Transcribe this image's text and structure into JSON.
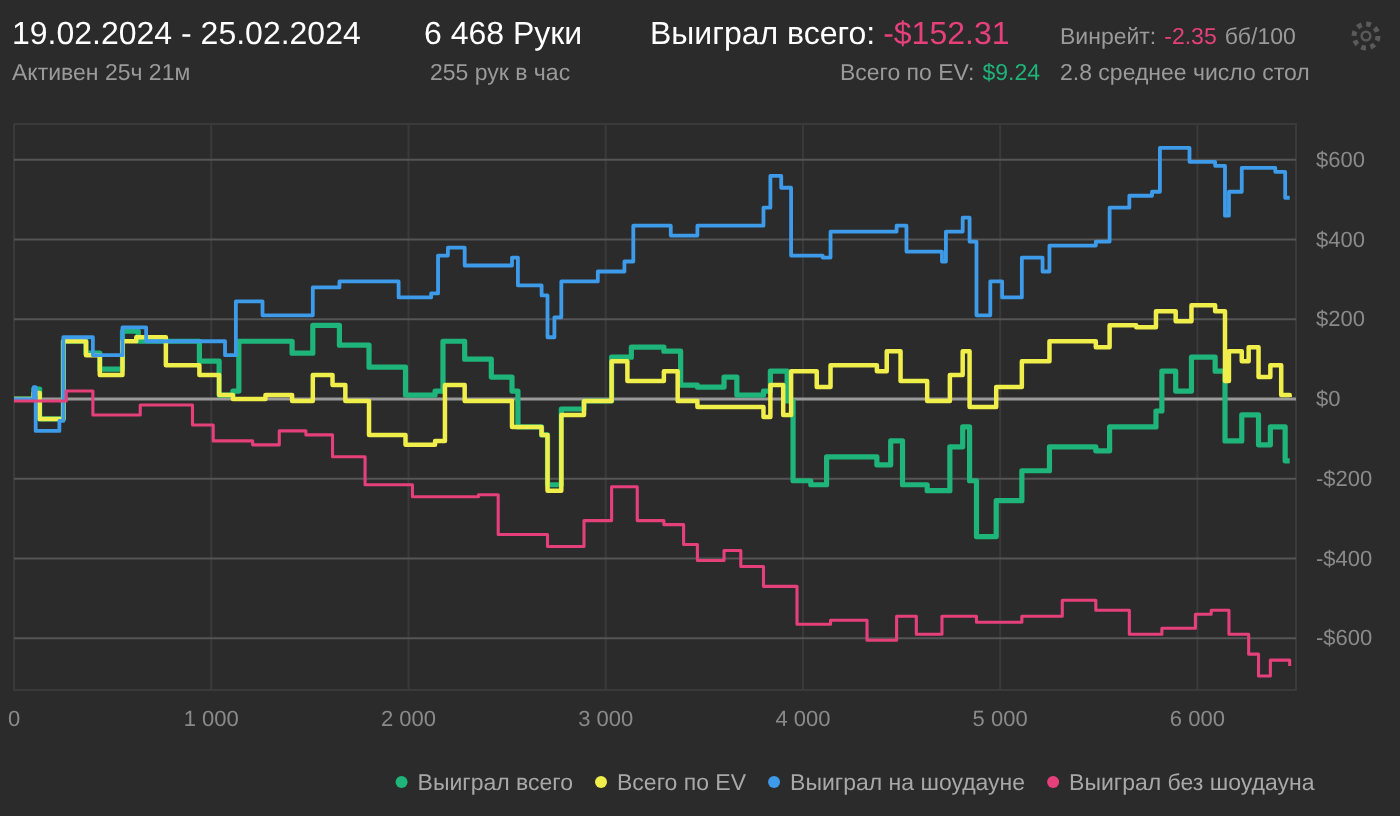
{
  "chart_data": {
    "type": "step",
    "title": "19.02.2024 - 25.02.2024",
    "subtitle": "Активен 25ч 21м",
    "annotations": [
      "6 468 Руки",
      "255 рук в час",
      "Выиграл всего:",
      "-$152.31",
      "Всего по EV:",
      "$9.24",
      "Винрейт:",
      "-2.35",
      "бб/100",
      "2.8 среднее число стол"
    ],
    "xlim": [
      0,
      6500
    ],
    "ylim": [
      -730,
      690
    ],
    "xticks": [
      0,
      {
        "value": 1000,
        "label": "1 000"
      },
      {
        "value": 2000,
        "label": "2 000"
      },
      {
        "value": 3000,
        "label": "3 000"
      },
      {
        "value": 4000,
        "label": "4 000"
      },
      {
        "value": 5000,
        "label": "5 000"
      },
      {
        "value": 6000,
        "label": "6 000"
      }
    ],
    "yticks": [
      {
        "value": -600,
        "label": "-$600"
      },
      {
        "value": -400,
        "label": "-$400"
      },
      {
        "value": -200,
        "label": "-$200"
      },
      {
        "value": 0,
        "label": "$0"
      },
      {
        "value": 200,
        "label": "$200"
      },
      {
        "value": 400,
        "label": "$400"
      },
      {
        "value": 600,
        "label": "$600"
      }
    ],
    "grid": true,
    "legend": "bottom",
    "line_style": "solid",
    "marker": "none",
    "series": [
      {
        "name": "Выиграл всего",
        "color": "#1fb57a",
        "x": [
          0,
          100,
          130,
          215,
          250,
          365,
          435,
          550,
          630,
          940,
          1040,
          1110,
          1140,
          1275,
          1410,
          1515,
          1650,
          1800,
          1985,
          2135,
          2175,
          2285,
          2420,
          2525,
          2555,
          2675,
          2705,
          2775,
          2890,
          3030,
          3130,
          3295,
          3380,
          3465,
          3600,
          3665,
          3800,
          3835,
          3920,
          3950,
          4040,
          4120,
          4375,
          4445,
          4505,
          4630,
          4745,
          4810,
          4845,
          4880,
          4980,
          5110,
          5250,
          5485,
          5555,
          5790,
          5820,
          5890,
          5970,
          6090,
          6140,
          6225,
          6310,
          6370,
          6445,
          6468
        ],
        "values": [
          0,
          25,
          -50,
          -50,
          145,
          115,
          75,
          170,
          145,
          95,
          10,
          20,
          145,
          145,
          115,
          185,
          135,
          80,
          10,
          20,
          145,
          100,
          55,
          20,
          -70,
          -90,
          -215,
          -25,
          -5,
          105,
          130,
          120,
          35,
          30,
          55,
          10,
          20,
          70,
          -5,
          -205,
          -215,
          -145,
          -165,
          -105,
          -215,
          -230,
          -120,
          -70,
          -205,
          -345,
          -255,
          -180,
          -120,
          -130,
          -70,
          -30,
          70,
          20,
          105,
          70,
          -105,
          -40,
          -115,
          -70,
          -155,
          -155
        ]
      },
      {
        "name": "Всего по EV",
        "color": "#f0ee4a",
        "x": [
          0,
          100,
          130,
          215,
          250,
          365,
          435,
          550,
          620,
          770,
          940,
          1040,
          1110,
          1275,
          1410,
          1515,
          1615,
          1680,
          1800,
          1985,
          2135,
          2185,
          2285,
          2420,
          2525,
          2675,
          2705,
          2775,
          2890,
          3030,
          3110,
          3295,
          3365,
          3465,
          3630,
          3800,
          3835,
          3900,
          3940,
          4070,
          4140,
          4375,
          4425,
          4495,
          4630,
          4745,
          4810,
          4845,
          4980,
          5110,
          5250,
          5485,
          5555,
          5690,
          5790,
          5890,
          5970,
          6090,
          6140,
          6160,
          6225,
          6260,
          6310,
          6370,
          6425,
          6468
        ],
        "values": [
          0,
          15,
          -50,
          -50,
          145,
          110,
          60,
          145,
          155,
          85,
          60,
          10,
          0,
          10,
          -5,
          60,
          35,
          -5,
          -90,
          -115,
          -105,
          35,
          -5,
          -5,
          -70,
          -90,
          -230,
          -40,
          -5,
          95,
          45,
          70,
          -5,
          -20,
          -20,
          -45,
          35,
          -40,
          70,
          30,
          85,
          70,
          120,
          45,
          -5,
          60,
          120,
          -20,
          30,
          95,
          145,
          130,
          185,
          180,
          220,
          195,
          235,
          220,
          45,
          120,
          95,
          130,
          55,
          85,
          10,
          5
        ]
      },
      {
        "name": "Выиграл на шоудауне",
        "color": "#3d9be9",
        "x": [
          0,
          100,
          110,
          230,
          250,
          400,
          550,
          670,
          940,
          1070,
          1125,
          1260,
          1495,
          1515,
          1650,
          1950,
          2115,
          2150,
          2200,
          2285,
          2525,
          2555,
          2675,
          2705,
          2740,
          2775,
          2960,
          3095,
          3140,
          3330,
          3465,
          3665,
          3800,
          3835,
          3890,
          3940,
          4100,
          4140,
          4475,
          4525,
          4705,
          4725,
          4810,
          4845,
          4880,
          4950,
          5010,
          5110,
          5215,
          5250,
          5485,
          5555,
          5655,
          5770,
          5810,
          5920,
          5960,
          6090,
          6140,
          6160,
          6210,
          6225,
          6395,
          6445,
          6468
        ],
        "values": [
          0,
          30,
          -80,
          -55,
          155,
          110,
          180,
          145,
          145,
          110,
          245,
          210,
          210,
          280,
          295,
          255,
          265,
          360,
          380,
          335,
          355,
          285,
          260,
          155,
          205,
          295,
          320,
          345,
          435,
          410,
          435,
          435,
          480,
          560,
          530,
          360,
          355,
          420,
          435,
          370,
          345,
          420,
          455,
          395,
          210,
          295,
          255,
          355,
          320,
          385,
          395,
          480,
          510,
          520,
          630,
          630,
          595,
          585,
          460,
          520,
          520,
          580,
          570,
          505,
          505
        ]
      },
      {
        "name": "Выиграл без шоудауна",
        "color": "#e5407a",
        "x": [
          0,
          265,
          400,
          640,
          905,
          1010,
          1210,
          1345,
          1480,
          1615,
          1780,
          2020,
          2355,
          2455,
          2705,
          2890,
          3030,
          3160,
          3295,
          3395,
          3465,
          3600,
          3685,
          3800,
          3970,
          4140,
          4325,
          4475,
          4575,
          4705,
          4880,
          5110,
          5315,
          5485,
          5655,
          5820,
          5990,
          6070,
          6160,
          6260,
          6310,
          6370,
          6468
        ],
        "values": [
          -5,
          20,
          -40,
          -15,
          -65,
          -105,
          -115,
          -80,
          -90,
          -145,
          -215,
          -245,
          -240,
          -340,
          -370,
          -305,
          -220,
          -305,
          -315,
          -365,
          -405,
          -380,
          -420,
          -470,
          -565,
          -555,
          -605,
          -545,
          -590,
          -545,
          -560,
          -545,
          -505,
          -530,
          -590,
          -575,
          -540,
          -530,
          -590,
          -640,
          -695,
          -655,
          -670
        ]
      }
    ]
  }
}
